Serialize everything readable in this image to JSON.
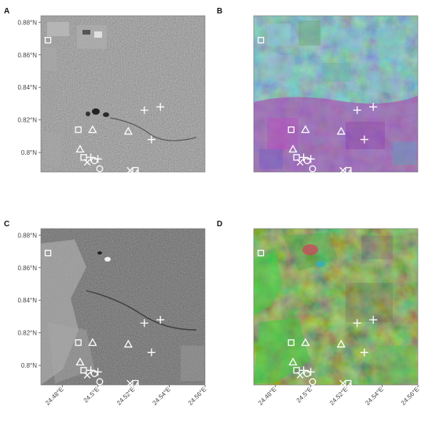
{
  "panels": [
    {
      "letter": "A",
      "style": "gray_a"
    },
    {
      "letter": "B",
      "style": "false_color_b"
    },
    {
      "letter": "C",
      "style": "gray_c"
    },
    {
      "letter": "D",
      "style": "false_color_d"
    }
  ],
  "y_ticks": [
    "0.8°N",
    "0.82°N",
    "0.84°N",
    "0.86°N",
    "0.88°N"
  ],
  "x_ticks": [
    "24.48°E",
    "24.5°E",
    "24.52°E",
    "24.54°E",
    "24.56°E"
  ],
  "extent": {
    "lon": [
      24.468,
      24.56
    ],
    "lat": [
      0.788,
      0.884
    ]
  },
  "tick_values": {
    "lon": [
      24.48,
      24.5,
      24.52,
      24.54,
      24.56
    ],
    "lat": [
      0.8,
      0.82,
      0.84,
      0.86,
      0.88
    ]
  },
  "markers": [
    {
      "shape": "square",
      "lon": 24.472,
      "lat": 0.869
    },
    {
      "shape": "square",
      "lon": 24.489,
      "lat": 0.814
    },
    {
      "shape": "triangle",
      "lon": 24.497,
      "lat": 0.814
    },
    {
      "shape": "triangle",
      "lon": 24.517,
      "lat": 0.813
    },
    {
      "shape": "plus",
      "lon": 24.526,
      "lat": 0.826
    },
    {
      "shape": "plus",
      "lon": 24.535,
      "lat": 0.828
    },
    {
      "shape": "plus",
      "lon": 24.53,
      "lat": 0.808
    },
    {
      "shape": "triangle",
      "lon": 24.49,
      "lat": 0.802
    },
    {
      "shape": "square",
      "lon": 24.492,
      "lat": 0.797
    },
    {
      "shape": "plus",
      "lon": 24.496,
      "lat": 0.797
    },
    {
      "shape": "cross",
      "lon": 24.494,
      "lat": 0.794
    },
    {
      "shape": "circle",
      "lon": 24.498,
      "lat": 0.795
    },
    {
      "shape": "plus",
      "lon": 24.5,
      "lat": 0.796
    },
    {
      "shape": "circle",
      "lon": 24.501,
      "lat": 0.79
    },
    {
      "shape": "cross",
      "lon": 24.518,
      "lat": 0.789
    },
    {
      "shape": "square",
      "lon": 24.521,
      "lat": 0.789
    },
    {
      "shape": "triangle",
      "lon": 24.522,
      "lat": 0.787
    }
  ],
  "colors": {
    "marker": "#ffffff",
    "axis": "#555555"
  }
}
